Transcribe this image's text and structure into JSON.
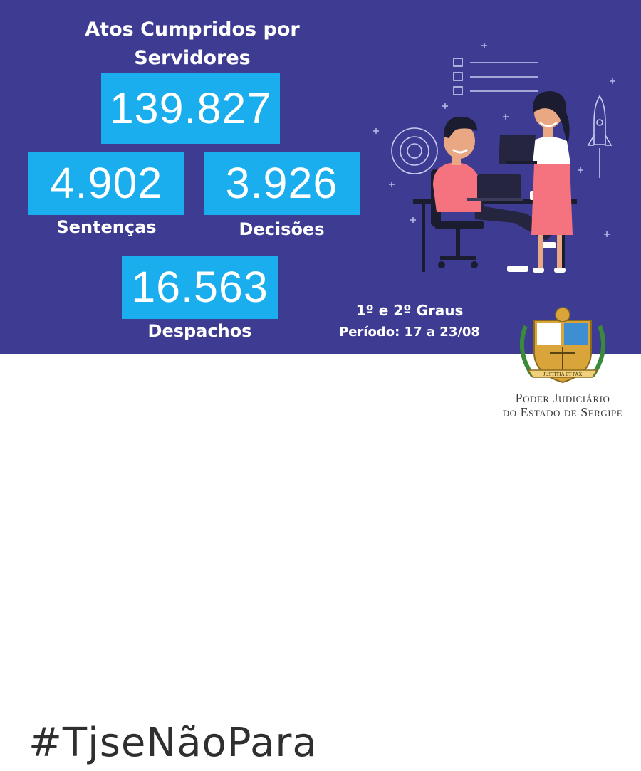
{
  "title": {
    "line1": "Atos Cumpridos por",
    "line2": "Servidores"
  },
  "total": {
    "value": "139.827"
  },
  "sentencas": {
    "value": "4.902",
    "label": "Sentenças"
  },
  "decisoes": {
    "value": "3.926",
    "label": "Decisões"
  },
  "despachos": {
    "value": "16.563",
    "label": "Despachos"
  },
  "info": {
    "graus": "1º e 2º Graus",
    "periodo": "Período: 17 a 23/08"
  },
  "hashtag": "#TjseNãoPara",
  "seal": {
    "motto": "JUSTITIA ET PAX",
    "line1": "Poder Judiciário",
    "line2": "do Estado de Sergipe"
  },
  "colors": {
    "background": "#3d3b92",
    "box": "#1aaeee",
    "footer": "#ffffff"
  },
  "icons": [
    "people-at-desk-illustration",
    "checklist-icon",
    "rocket-icon",
    "target-icon",
    "tjse-seal-icon"
  ]
}
